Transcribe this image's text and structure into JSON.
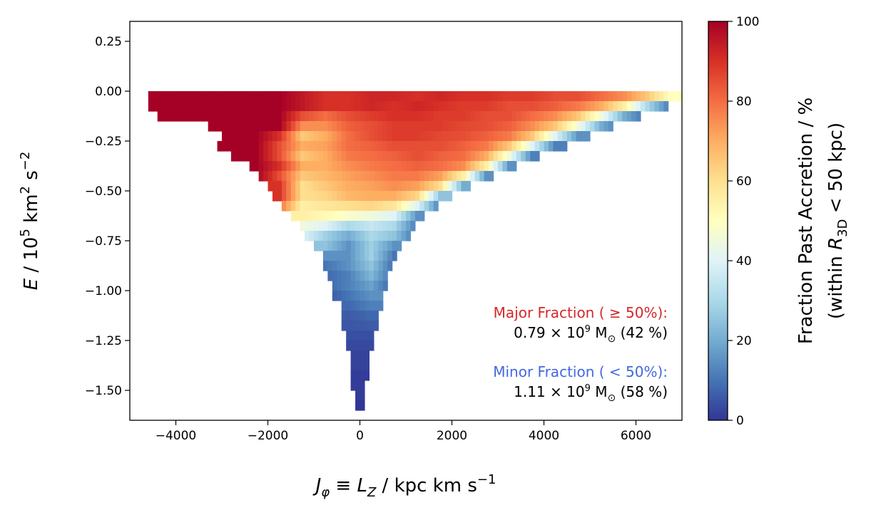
{
  "chart_data": {
    "type": "heatmap",
    "xlabel": {
      "main": "J",
      "sub": "φ",
      "mid": " ≡ ",
      "main2": "L",
      "sub2": "Z",
      "unit": " / kpc km s",
      "exp": "−1"
    },
    "ylabel": {
      "main": "E",
      "unit": " / 10",
      "exp": "5",
      "unit2": " km",
      "exp2": "2",
      "unit3": " s",
      "exp3": "−2"
    },
    "xlim": [
      -5000,
      7000
    ],
    "ylim": [
      -1.65,
      0.35
    ],
    "x_ticks": [
      -4000,
      -2000,
      0,
      2000,
      4000,
      6000
    ],
    "x_tick_labels": [
      "−4000",
      "−2000",
      "0",
      "2000",
      "4000",
      "6000"
    ],
    "y_ticks": [
      0.25,
      0.0,
      -0.25,
      -0.5,
      -0.75,
      -1.0,
      -1.25,
      -1.5
    ],
    "y_tick_labels": [
      "0.25",
      "0.00",
      "−0.25",
      "−0.50",
      "−0.75",
      "−1.00",
      "−1.25",
      "−1.50"
    ],
    "grid": false,
    "colormap": "RdYlBu_r",
    "colormap_stops": [
      "#313695",
      "#4575b4",
      "#74add1",
      "#abd9e9",
      "#e0f3f8",
      "#ffffbf",
      "#fee090",
      "#fdae61",
      "#f46d43",
      "#d73027",
      "#a50026"
    ],
    "colorbar": {
      "range": [
        0,
        100
      ],
      "ticks": [
        0,
        20,
        40,
        60,
        80,
        100
      ],
      "tick_labels": [
        "0",
        "20",
        "40",
        "60",
        "80",
        "100"
      ],
      "label_line1": "Fraction Past Accretion / %",
      "label_line2": {
        "pre": "(within ",
        "var": "R",
        "sub": "3D",
        "post": " < 50 kpc)"
      }
    },
    "bin_width_J": 500,
    "bin_height_E": 0.05,
    "rows": [
      {
        "E_max": 0.0,
        "J_range": [
          -4600,
          7000
        ],
        "values": [
          100,
          100,
          100,
          100,
          100,
          100,
          100,
          95,
          90,
          90,
          92,
          92,
          90,
          92,
          90,
          90,
          88,
          88,
          85,
          85,
          80,
          75,
          65,
          50
        ]
      },
      {
        "E_max": -0.05,
        "J_range": [
          -4600,
          6700
        ],
        "values": [
          100,
          100,
          100,
          100,
          100,
          100,
          100,
          95,
          90,
          90,
          92,
          90,
          92,
          90,
          88,
          88,
          85,
          85,
          82,
          78,
          70,
          55,
          30,
          10
        ]
      },
      {
        "E_max": -0.1,
        "J_range": [
          -4400,
          6100
        ],
        "values": [
          100,
          100,
          100,
          100,
          100,
          100,
          85,
          80,
          85,
          88,
          90,
          90,
          88,
          88,
          85,
          85,
          80,
          75,
          65,
          45,
          20,
          8
        ]
      },
      {
        "E_max": -0.15,
        "J_range": [
          -3300,
          5500
        ],
        "values": [
          100,
          100,
          100,
          100,
          75,
          75,
          82,
          85,
          88,
          88,
          88,
          86,
          85,
          82,
          75,
          65,
          45,
          20,
          8
        ]
      },
      {
        "E_max": -0.2,
        "J_range": [
          -3000,
          5000
        ],
        "values": [
          100,
          100,
          90,
          65,
          70,
          80,
          85,
          88,
          88,
          86,
          85,
          82,
          78,
          65,
          40,
          15
        ]
      },
      {
        "E_max": -0.25,
        "J_range": [
          -3100,
          4500
        ],
        "values": [
          100,
          100,
          100,
          85,
          70,
          72,
          80,
          82,
          85,
          85,
          85,
          82,
          78,
          65,
          40,
          12
        ]
      },
      {
        "E_max": -0.3,
        "J_range": [
          -2800,
          3900
        ],
        "values": [
          100,
          100,
          85,
          65,
          70,
          78,
          80,
          82,
          85,
          82,
          80,
          70,
          45,
          12
        ]
      },
      {
        "E_max": -0.35,
        "J_range": [
          -2400,
          3400
        ],
        "values": [
          100,
          90,
          70,
          70,
          75,
          78,
          80,
          82,
          80,
          75,
          55,
          15
        ]
      },
      {
        "E_max": -0.4,
        "J_range": [
          -2200,
          2900
        ],
        "values": [
          100,
          85,
          65,
          68,
          72,
          75,
          78,
          78,
          72,
          55,
          15
        ]
      },
      {
        "E_max": -0.45,
        "J_range": [
          -2000,
          2400
        ],
        "values": [
          90,
          60,
          65,
          70,
          72,
          75,
          72,
          60,
          20
        ]
      },
      {
        "E_max": -0.5,
        "J_range": [
          -1900,
          2000
        ],
        "values": [
          90,
          60,
          62,
          68,
          70,
          70,
          62,
          25
        ]
      },
      {
        "E_max": -0.55,
        "J_range": [
          -1650,
          1700
        ],
        "values": [
          80,
          55,
          58,
          60,
          62,
          58,
          40,
          10
        ]
      },
      {
        "E_max": -0.6,
        "J_range": [
          -1450,
          1400
        ],
        "values": [
          55,
          52,
          48,
          45,
          40,
          15
        ]
      },
      {
        "E_max": -0.65,
        "J_range": [
          -1300,
          1200
        ],
        "values": [
          45,
          40,
          30,
          35,
          30,
          10
        ]
      },
      {
        "E_max": -0.7,
        "J_range": [
          -1150,
          1050
        ],
        "values": [
          40,
          28,
          20,
          30,
          25,
          8
        ]
      },
      {
        "E_max": -0.75,
        "J_range": [
          -1000,
          900
        ],
        "values": [
          25,
          15,
          28,
          15
        ]
      },
      {
        "E_max": -0.8,
        "J_range": [
          -800,
          750
        ],
        "values": [
          15,
          15,
          28,
          10
        ]
      },
      {
        "E_max": -0.85,
        "J_range": [
          -750,
          650
        ],
        "values": [
          10,
          15,
          25,
          8
        ]
      },
      {
        "E_max": -0.9,
        "J_range": [
          -700,
          600
        ],
        "values": [
          8,
          12,
          22,
          8
        ]
      },
      {
        "E_max": -0.95,
        "J_range": [
          -600,
          550
        ],
        "values": [
          8,
          12,
          18,
          6
        ]
      },
      {
        "E_max": -1.0,
        "J_range": [
          -550,
          500
        ],
        "values": [
          5,
          10,
          15
        ]
      },
      {
        "E_max": -1.05,
        "J_range": [
          -400,
          420
        ],
        "values": [
          8,
          12
        ]
      },
      {
        "E_max": -1.1,
        "J_range": [
          -350,
          370
        ],
        "values": [
          6,
          8
        ]
      },
      {
        "E_max": -1.15,
        "J_range": [
          -350,
          320
        ],
        "values": [
          5,
          6
        ]
      },
      {
        "E_max": -1.2,
        "J_range": [
          -300,
          270
        ],
        "values": [
          4,
          4
        ]
      },
      {
        "E_max": -1.25,
        "J_range": [
          -250,
          220
        ],
        "values": [
          3,
          3
        ]
      },
      {
        "E_max": -1.3,
        "J_range": [
          -200,
          180
        ],
        "values": [
          2,
          2
        ]
      },
      {
        "E_max": -1.35,
        "J_range": [
          -200,
          140
        ],
        "values": [
          2,
          2
        ]
      },
      {
        "E_max": -1.4,
        "J_range": [
          -150,
          110
        ],
        "values": [
          1,
          1
        ]
      },
      {
        "E_max": -1.45,
        "J_range": [
          -150,
          80
        ],
        "values": [
          1,
          1
        ]
      },
      {
        "E_max": -1.5,
        "J_range": [
          -100,
          50
        ],
        "values": [
          1,
          1
        ]
      },
      {
        "E_max": -1.55,
        "J_range": [
          -50,
          30
        ],
        "values": [
          0,
          0
        ]
      }
    ],
    "annotations": {
      "major": {
        "label": "Major Fraction ( ≥ 50%):",
        "color": "#d62728",
        "value": "0.79 × 10",
        "exp": "9",
        "unit": " M",
        "sub": "⊙",
        "pct": "  (42 %)"
      },
      "minor": {
        "label": "Minor Fraction ( < 50%):",
        "color": "#4169e1",
        "value": "1.11 × 10",
        "exp": "9",
        "unit": " M",
        "sub": "⊙",
        "pct": "  (58 %)"
      }
    }
  }
}
